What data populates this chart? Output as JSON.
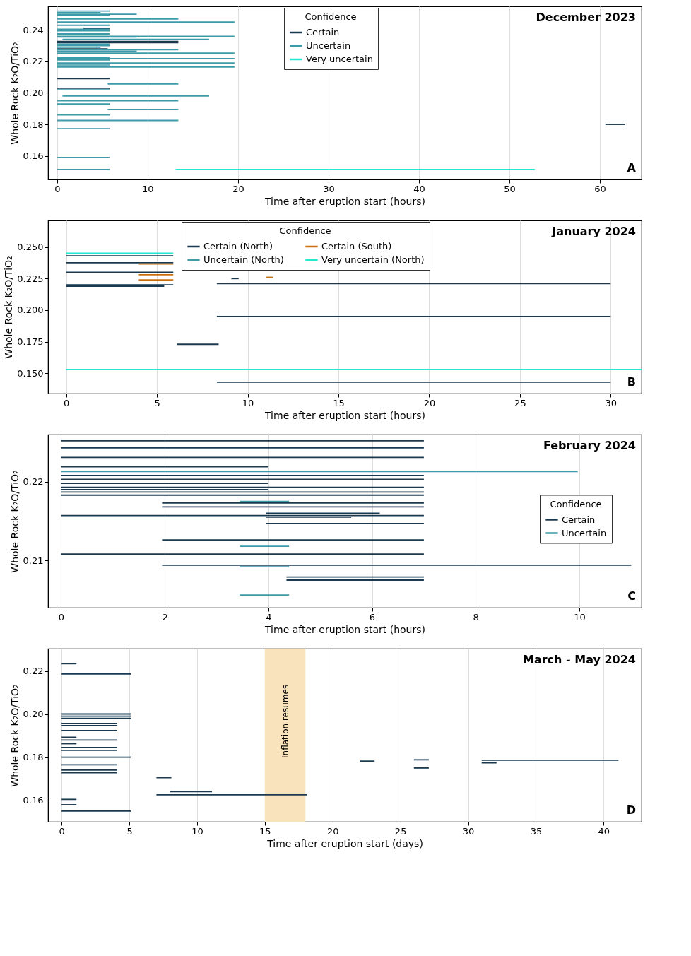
{
  "chart_data": [
    {
      "type": "line",
      "title": "December 2023",
      "xlabel": "Time after eruption start (hours)",
      "ylabel": "Whole Rock K₂O/TiO₂",
      "legend_title": "Confidence",
      "legend": "top",
      "grid": "x",
      "xlim": [
        -1,
        64.6
      ],
      "ylim": [
        0.145,
        0.255
      ],
      "xticks": [
        0,
        10,
        20,
        30,
        40,
        50,
        60
      ],
      "yticks": [
        0.16,
        0.18,
        {
          "value": 0.2,
          "label": "0.20"
        },
        0.22,
        0.24
      ],
      "annotations": [
        "A"
      ],
      "series": [
        {
          "name": "Certain",
          "color": "#1b3a50",
          "x": [
            2.9,
            5.8
          ],
          "values": [
            0.241,
            0.241
          ]
        },
        {
          "color": "#1b3a50",
          "x": [
            0,
            13.4
          ],
          "values": [
            0.2327,
            0.2327
          ]
        },
        {
          "color": "#1b3a50",
          "x": [
            0,
            13.4
          ],
          "values": [
            0.232,
            0.232
          ]
        },
        {
          "color": "#1b3a50",
          "x": [
            0,
            5.6
          ],
          "values": [
            0.228,
            0.228
          ]
        },
        {
          "color": "#1b3a50",
          "x": [
            0,
            5.8
          ],
          "values": [
            0.209,
            0.209
          ]
        },
        {
          "color": "#1b3a50",
          "x": [
            0,
            5.8
          ],
          "values": [
            0.203,
            0.203
          ]
        },
        {
          "color": "#1b3a50",
          "x": [
            60.6,
            62.8
          ],
          "values": [
            0.18,
            0.18
          ]
        },
        {
          "name": "Uncertain",
          "color": "#3d9aa8",
          "x": [
            0,
            5.8
          ],
          "values": [
            0.252,
            0.252
          ]
        },
        {
          "color": "#3d9aa8",
          "x": [
            0,
            4.8
          ],
          "values": [
            0.251,
            0.251
          ]
        },
        {
          "color": "#3d9aa8",
          "x": [
            0,
            8.8
          ],
          "values": [
            0.25,
            0.25
          ]
        },
        {
          "color": "#3d9aa8",
          "x": [
            0,
            5.8
          ],
          "values": [
            0.2495,
            0.2495
          ]
        },
        {
          "color": "#3d9aa8",
          "x": [
            0,
            13.4
          ],
          "values": [
            0.247,
            0.247
          ]
        },
        {
          "color": "#3d9aa8",
          "x": [
            0,
            19.6
          ],
          "values": [
            0.245,
            0.245
          ]
        },
        {
          "color": "#3d9aa8",
          "x": [
            0,
            5.8
          ],
          "values": [
            0.243,
            0.243
          ]
        },
        {
          "color": "#3d9aa8",
          "x": [
            0,
            5.8
          ],
          "values": [
            0.2405,
            0.2405
          ]
        },
        {
          "color": "#3d9aa8",
          "x": [
            0,
            5.8
          ],
          "values": [
            0.2395,
            0.2395
          ]
        },
        {
          "color": "#3d9aa8",
          "x": [
            0,
            5.8
          ],
          "values": [
            0.2375,
            0.2375
          ]
        },
        {
          "color": "#3d9aa8",
          "x": [
            0,
            19.6
          ],
          "values": [
            0.236,
            0.236
          ]
        },
        {
          "color": "#3d9aa8",
          "x": [
            0,
            8.8
          ],
          "values": [
            0.2355,
            0.2355
          ]
        },
        {
          "color": "#3d9aa8",
          "x": [
            0.6,
            16.8
          ],
          "values": [
            0.234,
            0.234
          ]
        },
        {
          "color": "#3d9aa8",
          "x": [
            0,
            5.8
          ],
          "values": [
            0.231,
            0.231
          ]
        },
        {
          "color": "#3d9aa8",
          "x": [
            0,
            5.8
          ],
          "values": [
            0.23,
            0.23
          ]
        },
        {
          "color": "#3d9aa8",
          "x": [
            0,
            4.8
          ],
          "values": [
            0.229,
            0.229
          ]
        },
        {
          "color": "#3d9aa8",
          "x": [
            0,
            13.4
          ],
          "values": [
            0.2275,
            0.2275
          ]
        },
        {
          "color": "#3d9aa8",
          "x": [
            0,
            8.8
          ],
          "values": [
            0.2265,
            0.2265
          ]
        },
        {
          "color": "#3d9aa8",
          "x": [
            0,
            19.6
          ],
          "values": [
            0.2253,
            0.2253
          ]
        },
        {
          "color": "#3d9aa8",
          "x": [
            0,
            5.8
          ],
          "values": [
            0.2225,
            0.2225
          ]
        },
        {
          "color": "#3d9aa8",
          "x": [
            0,
            19.6
          ],
          "values": [
            0.2218,
            0.2218
          ]
        },
        {
          "color": "#3d9aa8",
          "x": [
            0,
            5.8
          ],
          "values": [
            0.221,
            0.221
          ]
        },
        {
          "color": "#3d9aa8",
          "x": [
            0,
            19.6
          ],
          "values": [
            0.219,
            0.219
          ]
        },
        {
          "color": "#3d9aa8",
          "x": [
            0,
            5.8
          ],
          "values": [
            0.2183,
            0.2183
          ]
        },
        {
          "color": "#3d9aa8",
          "x": [
            0,
            5.8
          ],
          "values": [
            0.2172,
            0.2172
          ]
        },
        {
          "color": "#3d9aa8",
          "x": [
            0,
            19.6
          ],
          "values": [
            0.2165,
            0.2165
          ]
        },
        {
          "color": "#3d9aa8",
          "x": [
            5.6,
            13.4
          ],
          "values": [
            0.2057,
            0.2057
          ]
        },
        {
          "color": "#3d9aa8",
          "x": [
            0,
            5.8
          ],
          "values": [
            0.202,
            0.202
          ]
        },
        {
          "color": "#3d9aa8",
          "x": [
            0.6,
            16.8
          ],
          "values": [
            0.198,
            0.198
          ]
        },
        {
          "color": "#3d9aa8",
          "x": [
            0,
            13.4
          ],
          "values": [
            0.195,
            0.195
          ]
        },
        {
          "color": "#3d9aa8",
          "x": [
            0,
            5.8
          ],
          "values": [
            0.193,
            0.193
          ]
        },
        {
          "color": "#3d9aa8",
          "x": [
            5.6,
            13.4
          ],
          "values": [
            0.1895,
            0.1895
          ]
        },
        {
          "color": "#3d9aa8",
          "x": [
            0,
            5.8
          ],
          "values": [
            0.186,
            0.186
          ]
        },
        {
          "color": "#3d9aa8",
          "x": [
            0,
            13.4
          ],
          "values": [
            0.1825,
            0.1825
          ]
        },
        {
          "color": "#3d9aa8",
          "x": [
            0,
            5.8
          ],
          "values": [
            0.1773,
            0.1773
          ]
        },
        {
          "color": "#3d9aa8",
          "x": [
            0,
            5.8
          ],
          "values": [
            0.159,
            0.159
          ]
        },
        {
          "color": "#3d9aa8",
          "x": [
            0,
            5.8
          ],
          "values": [
            0.1513,
            0.1513
          ]
        },
        {
          "name": "Very uncertain",
          "color": "#22e8d2",
          "x": [
            13.1,
            52.8
          ],
          "values": [
            0.1513,
            0.1513
          ]
        }
      ]
    },
    {
      "type": "line",
      "title": "January 2024",
      "xlabel": "Time after eruption start (hours)",
      "ylabel": "Whole Rock K₂O/TiO₂",
      "legend_title": "Confidence",
      "legend": "top",
      "grid": "x",
      "xlim": [
        -1,
        31.7
      ],
      "ylim": [
        0.134,
        0.271
      ],
      "xticks": [
        0,
        5,
        10,
        15,
        20,
        25,
        30
      ],
      "yticks": [
        {
          "value": 0.15,
          "label": "0.150"
        },
        0.175,
        {
          "value": 0.2,
          "label": "0.200"
        },
        0.225,
        {
          "value": 0.25,
          "label": "0.250"
        }
      ],
      "annotations": [
        "B"
      ],
      "series": [
        {
          "name": "Certain (North)",
          "color": "#1b3a50",
          "x": [
            0,
            5.9
          ],
          "values": [
            0.243,
            0.243
          ]
        },
        {
          "color": "#1b3a50",
          "x": [
            0,
            5.9
          ],
          "values": [
            0.2375,
            0.2375
          ]
        },
        {
          "color": "#1b3a50",
          "x": [
            0,
            5.9
          ],
          "values": [
            0.23,
            0.23
          ]
        },
        {
          "color": "#1b3a50",
          "x": [
            9.1,
            9.5
          ],
          "values": [
            0.225,
            0.225
          ]
        },
        {
          "color": "#1b3a50",
          "x": [
            8.3,
            30.0
          ],
          "values": [
            0.221,
            0.221
          ]
        },
        {
          "color": "#1b3a50",
          "x": [
            0,
            5.9
          ],
          "values": [
            0.22,
            0.22
          ]
        },
        {
          "color": "#1b3a50",
          "x": [
            0,
            5.4
          ],
          "values": [
            0.219,
            0.219
          ]
        },
        {
          "color": "#1b3a50",
          "x": [
            8.3,
            30.0
          ],
          "values": [
            0.195,
            0.195
          ]
        },
        {
          "color": "#1b3a50",
          "x": [
            6.1,
            8.4
          ],
          "values": [
            0.173,
            0.173
          ]
        },
        {
          "color": "#1b3a50",
          "x": [
            8.3,
            30.0
          ],
          "values": [
            0.143,
            0.143
          ]
        },
        {
          "name": "Uncertain (North)",
          "color": "#3d9aa8"
        },
        {
          "name": "Certain (South)",
          "color": "#c8700f",
          "x": [
            4.0,
            5.9
          ],
          "values": [
            0.2365,
            0.2365
          ]
        },
        {
          "color": "#c8700f",
          "x": [
            4.0,
            5.9
          ],
          "values": [
            0.228,
            0.228
          ]
        },
        {
          "color": "#c8700f",
          "x": [
            4.0,
            5.9
          ],
          "values": [
            0.224,
            0.224
          ]
        },
        {
          "color": "#c8700f",
          "x": [
            11.0,
            11.4
          ],
          "values": [
            0.226,
            0.226
          ]
        },
        {
          "name": "Very uncertain (North)",
          "color": "#22e8d2",
          "x": [
            0,
            5.9
          ],
          "values": [
            0.245,
            0.245
          ]
        },
        {
          "color": "#22e8d2",
          "x": [
            0,
            31.7
          ],
          "values": [
            0.153,
            0.153
          ]
        }
      ]
    },
    {
      "type": "line",
      "title": "February 2024",
      "xlabel": "Time after eruption start (hours)",
      "ylabel": "Whole Rock K₂O/TiO₂",
      "legend_title": "Confidence",
      "legend": "right",
      "grid": "x",
      "xlim": [
        -0.25,
        11.2
      ],
      "ylim": [
        0.204,
        0.226
      ],
      "xticks": [
        0,
        2,
        4,
        6,
        8,
        10
      ],
      "yticks": [
        0.21,
        0.22
      ],
      "annotations": [
        "C"
      ],
      "series": [
        {
          "name": "Certain",
          "color": "#1b3a50",
          "x": [
            0,
            7
          ],
          "values": [
            0.2252,
            0.2252
          ]
        },
        {
          "color": "#1b3a50",
          "x": [
            0,
            7
          ],
          "values": [
            0.2243,
            0.2243
          ]
        },
        {
          "color": "#1b3a50",
          "x": [
            0,
            7
          ],
          "values": [
            0.2231,
            0.2231
          ]
        },
        {
          "color": "#1b3a50",
          "x": [
            0,
            4.0
          ],
          "values": [
            0.2219,
            0.2219
          ]
        },
        {
          "color": "#1b3a50",
          "x": [
            0,
            7
          ],
          "values": [
            0.2208,
            0.2208
          ]
        },
        {
          "color": "#1b3a50",
          "x": [
            0,
            7
          ],
          "values": [
            0.2203,
            0.2203
          ]
        },
        {
          "color": "#1b3a50",
          "x": [
            0,
            4.0
          ],
          "values": [
            0.2198,
            0.2198
          ]
        },
        {
          "color": "#1b3a50",
          "x": [
            0,
            7
          ],
          "values": [
            0.2193,
            0.2193
          ]
        },
        {
          "color": "#1b3a50",
          "x": [
            0,
            4.0
          ],
          "values": [
            0.219,
            0.219
          ]
        },
        {
          "color": "#1b3a50",
          "x": [
            0,
            7
          ],
          "values": [
            0.2187,
            0.2187
          ]
        },
        {
          "color": "#1b3a50",
          "x": [
            0,
            7
          ],
          "values": [
            0.2183,
            0.2183
          ]
        },
        {
          "color": "#1b3a50",
          "x": [
            1.95,
            7
          ],
          "values": [
            0.2173,
            0.2173
          ]
        },
        {
          "color": "#1b3a50",
          "x": [
            1.95,
            7
          ],
          "values": [
            0.2168,
            0.2168
          ]
        },
        {
          "color": "#1b3a50",
          "x": [
            3.95,
            6.15
          ],
          "values": [
            0.216,
            0.216
          ]
        },
        {
          "color": "#1b3a50",
          "x": [
            0,
            7
          ],
          "values": [
            0.2157,
            0.2157
          ]
        },
        {
          "color": "#1b3a50",
          "x": [
            3.95,
            5.6
          ],
          "values": [
            0.2155,
            0.2155
          ]
        },
        {
          "color": "#1b3a50",
          "x": [
            3.95,
            7
          ],
          "values": [
            0.2147,
            0.2147
          ]
        },
        {
          "color": "#1b3a50",
          "x": [
            1.95,
            7
          ],
          "values": [
            0.2126,
            0.2126
          ]
        },
        {
          "color": "#1b3a50",
          "x": [
            0,
            7
          ],
          "values": [
            0.2108,
            0.2108
          ]
        },
        {
          "color": "#1b3a50",
          "x": [
            1.95,
            11.0
          ],
          "values": [
            0.2094,
            0.2094
          ]
        },
        {
          "color": "#1b3a50",
          "x": [
            4.35,
            7
          ],
          "values": [
            0.2079,
            0.2079
          ]
        },
        {
          "color": "#1b3a50",
          "x": [
            4.35,
            7
          ],
          "values": [
            0.2075,
            0.2075
          ]
        },
        {
          "name": "Uncertain",
          "color": "#3d9aa8",
          "x": [
            0,
            9.97
          ],
          "values": [
            0.2213,
            0.2213
          ]
        },
        {
          "color": "#3d9aa8",
          "x": [
            3.45,
            4.4
          ],
          "values": [
            0.2175,
            0.2175
          ]
        },
        {
          "color": "#3d9aa8",
          "x": [
            3.45,
            4.4
          ],
          "values": [
            0.2118,
            0.2118
          ]
        },
        {
          "color": "#3d9aa8",
          "x": [
            3.45,
            4.4
          ],
          "values": [
            0.2092,
            0.2092
          ]
        },
        {
          "color": "#3d9aa8",
          "x": [
            3.45,
            4.4
          ],
          "values": [
            0.2056,
            0.2056
          ]
        }
      ]
    },
    {
      "type": "line",
      "title": "March - May 2024",
      "xlabel": "Time after eruption start (days)",
      "ylabel": "Whole Rock K₂O/TiO₂",
      "grid": "x",
      "xlim": [
        -1,
        42.8
      ],
      "ylim": [
        0.15,
        0.2305
      ],
      "xticks": [
        0,
        5,
        10,
        15,
        20,
        25,
        30,
        35,
        40
      ],
      "yticks": [
        0.16,
        0.18,
        {
          "value": 0.2,
          "label": "0.20"
        },
        0.22
      ],
      "annotations": [
        "D"
      ],
      "bands": [
        {
          "axis": "x",
          "from": 15,
          "to": 18,
          "label": "Inflation resumes",
          "color": "#f9e3bd"
        }
      ],
      "series": [
        {
          "color": "#1b3a50",
          "x": [
            0,
            1.1
          ],
          "values": [
            0.2235,
            0.2235
          ]
        },
        {
          "color": "#1b3a50",
          "x": [
            0,
            5.1
          ],
          "values": [
            0.2187,
            0.2187
          ]
        },
        {
          "color": "#1b3a50",
          "x": [
            0,
            5.1
          ],
          "values": [
            0.2001,
            0.2001
          ]
        },
        {
          "color": "#1b3a50",
          "x": [
            0,
            5.1
          ],
          "values": [
            0.1991,
            0.1991
          ]
        },
        {
          "color": "#1b3a50",
          "x": [
            0,
            5.1
          ],
          "values": [
            0.1981,
            0.1981
          ]
        },
        {
          "color": "#1b3a50",
          "x": [
            0,
            4.1
          ],
          "values": [
            0.1957,
            0.1957
          ]
        },
        {
          "color": "#1b3a50",
          "x": [
            0,
            4.1
          ],
          "values": [
            0.1947,
            0.1947
          ]
        },
        {
          "color": "#1b3a50",
          "x": [
            0,
            4.1
          ],
          "values": [
            0.1924,
            0.1924
          ]
        },
        {
          "color": "#1b3a50",
          "x": [
            0,
            1.1
          ],
          "values": [
            0.1893,
            0.1893
          ]
        },
        {
          "color": "#1b3a50",
          "x": [
            0,
            4.1
          ],
          "values": [
            0.188,
            0.188
          ]
        },
        {
          "color": "#1b3a50",
          "x": [
            0,
            1.1
          ],
          "values": [
            0.1863,
            0.1863
          ]
        },
        {
          "color": "#1b3a50",
          "x": [
            0,
            4.1
          ],
          "values": [
            0.1845,
            0.1845
          ]
        },
        {
          "color": "#1b3a50",
          "x": [
            0,
            4.1
          ],
          "values": [
            0.1832,
            0.1832
          ]
        },
        {
          "color": "#1b3a50",
          "x": [
            0,
            5.1
          ],
          "values": [
            0.18,
            0.18
          ]
        },
        {
          "color": "#1b3a50",
          "x": [
            0,
            4.1
          ],
          "values": [
            0.1765,
            0.1765
          ]
        },
        {
          "color": "#1b3a50",
          "x": [
            0,
            4.1
          ],
          "values": [
            0.174,
            0.174
          ]
        },
        {
          "color": "#1b3a50",
          "x": [
            0,
            4.1
          ],
          "values": [
            0.1728,
            0.1728
          ]
        },
        {
          "color": "#1b3a50",
          "x": [
            0,
            1.1
          ],
          "values": [
            0.1604,
            0.1604
          ]
        },
        {
          "color": "#1b3a50",
          "x": [
            0,
            1.1
          ],
          "values": [
            0.1579,
            0.1579
          ]
        },
        {
          "color": "#1b3a50",
          "x": [
            0,
            5.1
          ],
          "values": [
            0.155,
            0.155
          ]
        },
        {
          "color": "#1b3a50",
          "x": [
            7.0,
            8.1
          ],
          "values": [
            0.1705,
            0.1705
          ]
        },
        {
          "color": "#1b3a50",
          "x": [
            8.0,
            11.1
          ],
          "values": [
            0.164,
            0.164
          ]
        },
        {
          "color": "#1b3a50",
          "x": [
            7.0,
            18.1
          ],
          "values": [
            0.1625,
            0.1625
          ]
        },
        {
          "color": "#1b3a50",
          "x": [
            22.0,
            23.1
          ],
          "values": [
            0.1782,
            0.1782
          ]
        },
        {
          "color": "#1b3a50",
          "x": [
            26.0,
            27.1
          ],
          "values": [
            0.1788,
            0.1788
          ]
        },
        {
          "color": "#1b3a50",
          "x": [
            26.0,
            27.1
          ],
          "values": [
            0.175,
            0.175
          ]
        },
        {
          "color": "#1b3a50",
          "x": [
            31.0,
            41.1
          ],
          "values": [
            0.1786,
            0.1786
          ]
        },
        {
          "color": "#1b3a50",
          "x": [
            31.0,
            32.1
          ],
          "values": [
            0.1774,
            0.1774
          ]
        }
      ]
    }
  ]
}
